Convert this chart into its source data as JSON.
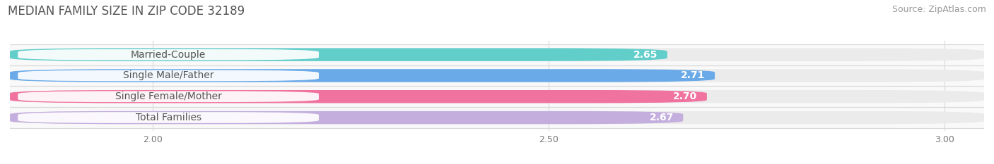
{
  "title": "MEDIAN FAMILY SIZE IN ZIP CODE 32189",
  "source": "Source: ZipAtlas.com",
  "categories": [
    "Married-Couple",
    "Single Male/Father",
    "Single Female/Mother",
    "Total Families"
  ],
  "values": [
    2.65,
    2.71,
    2.7,
    2.67
  ],
  "bar_colors": [
    "#62ceca",
    "#6baae8",
    "#f0729e",
    "#c4aede"
  ],
  "xlim_min": 1.82,
  "xlim_max": 3.05,
  "xticks": [
    2.0,
    2.5,
    3.0
  ],
  "xtick_labels": [
    "2.00",
    "2.50",
    "3.00"
  ],
  "title_fontsize": 12,
  "source_fontsize": 9,
  "label_fontsize": 10,
  "value_fontsize": 10,
  "tick_fontsize": 9,
  "background_color": "#ffffff",
  "bar_height": 0.62,
  "bar_bg_color": "#ebebeb",
  "separator_color": "#d8d8d8",
  "label_pill_color": "#ffffff",
  "label_text_color": "#555555",
  "value_text_color": "#ffffff",
  "grid_color": "#d8d8d8"
}
